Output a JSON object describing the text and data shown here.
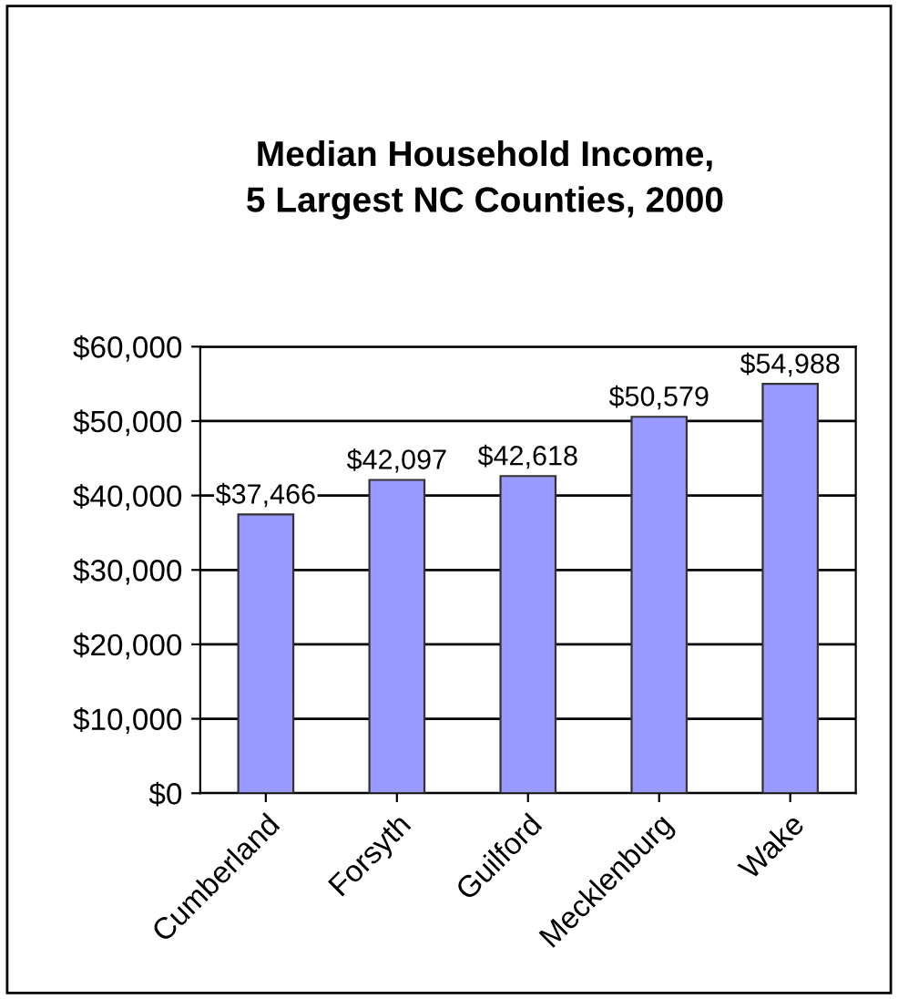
{
  "chart_data": {
    "type": "bar",
    "title": "Median Household Income,\n5 Largest NC Counties, 2000",
    "categories": [
      "Cumberland",
      "Forsyth",
      "Guilford",
      "Mecklenburg",
      "Wake"
    ],
    "values": [
      37466,
      42097,
      42618,
      50579,
      54988
    ],
    "value_labels": [
      "$37,466",
      "$42,097",
      "$42,618",
      "$50,579",
      "$54,988"
    ],
    "color": "#9999ff",
    "ylim": [
      0,
      60000
    ],
    "yticks": [
      {
        "value": 0,
        "label": "$0"
      },
      {
        "value": 10000,
        "label": "$10,000"
      },
      {
        "value": 20000,
        "label": "$20,000"
      },
      {
        "value": 30000,
        "label": "$30,000"
      },
      {
        "value": 40000,
        "label": "$40,000"
      },
      {
        "value": 50000,
        "label": "$50,000"
      },
      {
        "value": 60000,
        "label": "$60,000"
      }
    ],
    "grid": "y",
    "legend": false
  }
}
